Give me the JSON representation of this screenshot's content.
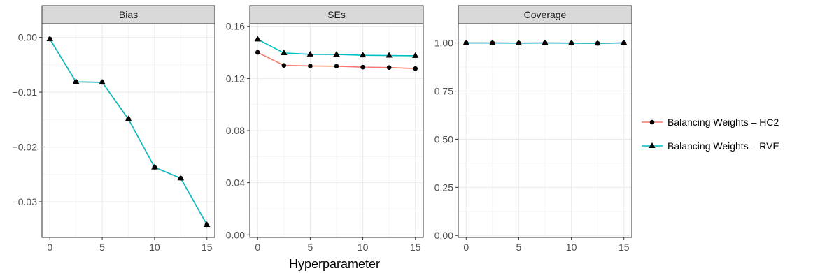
{
  "chart_data": {
    "type": "line",
    "xlabel": "Hyperparameter",
    "x": [
      0,
      2.5,
      5,
      7.5,
      10,
      12.5,
      15
    ],
    "legend": {
      "position": "right",
      "entries": [
        "Balancing Weights – HC2",
        "Balancing Weights – RVE"
      ]
    },
    "colors": {
      "HC2": "#F8766D",
      "RVE": "#00BFC4",
      "markers": "#000000"
    },
    "grid": true,
    "panels": [
      {
        "title": "Bias",
        "ylim": [
          -0.0365,
          0.0025
        ],
        "y_ticks": [
          0.0,
          -0.01,
          -0.02,
          -0.03
        ],
        "y_tick_labels": [
          "0.00",
          "−0.01",
          "−0.02",
          "−0.03"
        ],
        "series": [
          {
            "name": "Balancing Weights – HC2",
            "marker": "circle",
            "values": [
              -0.0003,
              -0.0081,
              -0.0082,
              -0.0149,
              -0.0237,
              -0.0257,
              -0.0342
            ]
          },
          {
            "name": "Balancing Weights – RVE",
            "marker": "triangle",
            "values": [
              -0.0003,
              -0.0081,
              -0.0082,
              -0.0149,
              -0.0237,
              -0.0257,
              -0.0342
            ]
          }
        ]
      },
      {
        "title": "SEs",
        "ylim": [
          -0.002,
          0.162
        ],
        "y_ticks": [
          0.0,
          0.04,
          0.08,
          0.12,
          0.16
        ],
        "y_tick_labels": [
          "0.00",
          "0.04",
          "0.08",
          "0.12",
          "0.16"
        ],
        "series": [
          {
            "name": "Balancing Weights – HC2",
            "marker": "circle",
            "values": [
              0.14,
              0.13,
              0.1296,
              0.1294,
              0.1287,
              0.1284,
              0.1276
            ]
          },
          {
            "name": "Balancing Weights – RVE",
            "marker": "triangle",
            "values": [
              0.15,
              0.1395,
              0.1385,
              0.1384,
              0.1378,
              0.1376,
              0.1374
            ]
          }
        ]
      },
      {
        "title": "Coverage",
        "ylim": [
          -0.01,
          1.1
        ],
        "y_ticks": [
          0.0,
          0.25,
          0.5,
          0.75,
          1.0
        ],
        "y_tick_labels": [
          "0.00",
          "0.25",
          "0.50",
          "0.75",
          "1.00"
        ],
        "series": [
          {
            "name": "Balancing Weights – HC2",
            "marker": "circle",
            "values": [
              1.0,
              1.0,
              0.999,
              1.0,
              0.999,
              0.998,
              1.0
            ]
          },
          {
            "name": "Balancing Weights – RVE",
            "marker": "triangle",
            "values": [
              1.0,
              1.0,
              0.999,
              1.0,
              0.999,
              0.998,
              1.0
            ]
          }
        ]
      }
    ]
  }
}
